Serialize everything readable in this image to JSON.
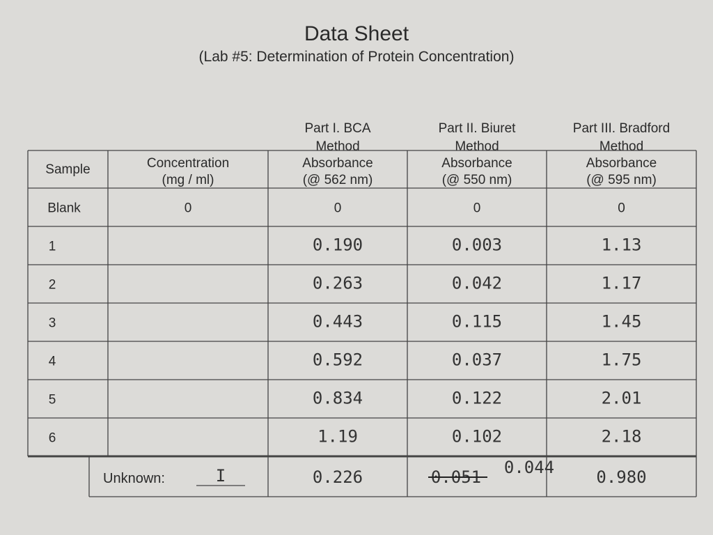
{
  "header": {
    "title": "Data Sheet",
    "subtitle": "(Lab #5: Determination of Protein Concentration)"
  },
  "table": {
    "groups": [
      [
        "Part I. BCA",
        "Method"
      ],
      [
        "Part II. Biuret",
        "Method"
      ],
      [
        "Part III. Bradford",
        "Method"
      ]
    ],
    "columns": [
      [
        "Sample"
      ],
      [
        "Concentration",
        "(mg / ml)"
      ],
      [
        "Absorbance",
        "(@ 562 nm)"
      ],
      [
        "Absorbance",
        "(@ 550 nm)"
      ],
      [
        "Absorbance",
        "(@ 595 nm)"
      ]
    ],
    "rows": [
      [
        "Blank",
        "0",
        "0",
        "0",
        "0"
      ],
      [
        "1",
        null,
        "0.190",
        "0.003",
        "1.13"
      ],
      [
        "2",
        null,
        "0.263",
        "0.042",
        "1.17"
      ],
      [
        "3",
        null,
        "0.443",
        "0.115",
        "1.45"
      ],
      [
        "4",
        null,
        "0.592",
        "0.037",
        "1.75"
      ],
      [
        "5",
        null,
        "0.834",
        "0.122",
        "2.01"
      ],
      [
        "6",
        null,
        "1.19",
        "0.102",
        "2.18"
      ]
    ],
    "unknown": {
      "label": "Unknown:",
      "id": "I",
      "bca": "0.226",
      "biuret_crossed": "0.051",
      "biuret": "0.044",
      "bradford": "0.980"
    }
  }
}
